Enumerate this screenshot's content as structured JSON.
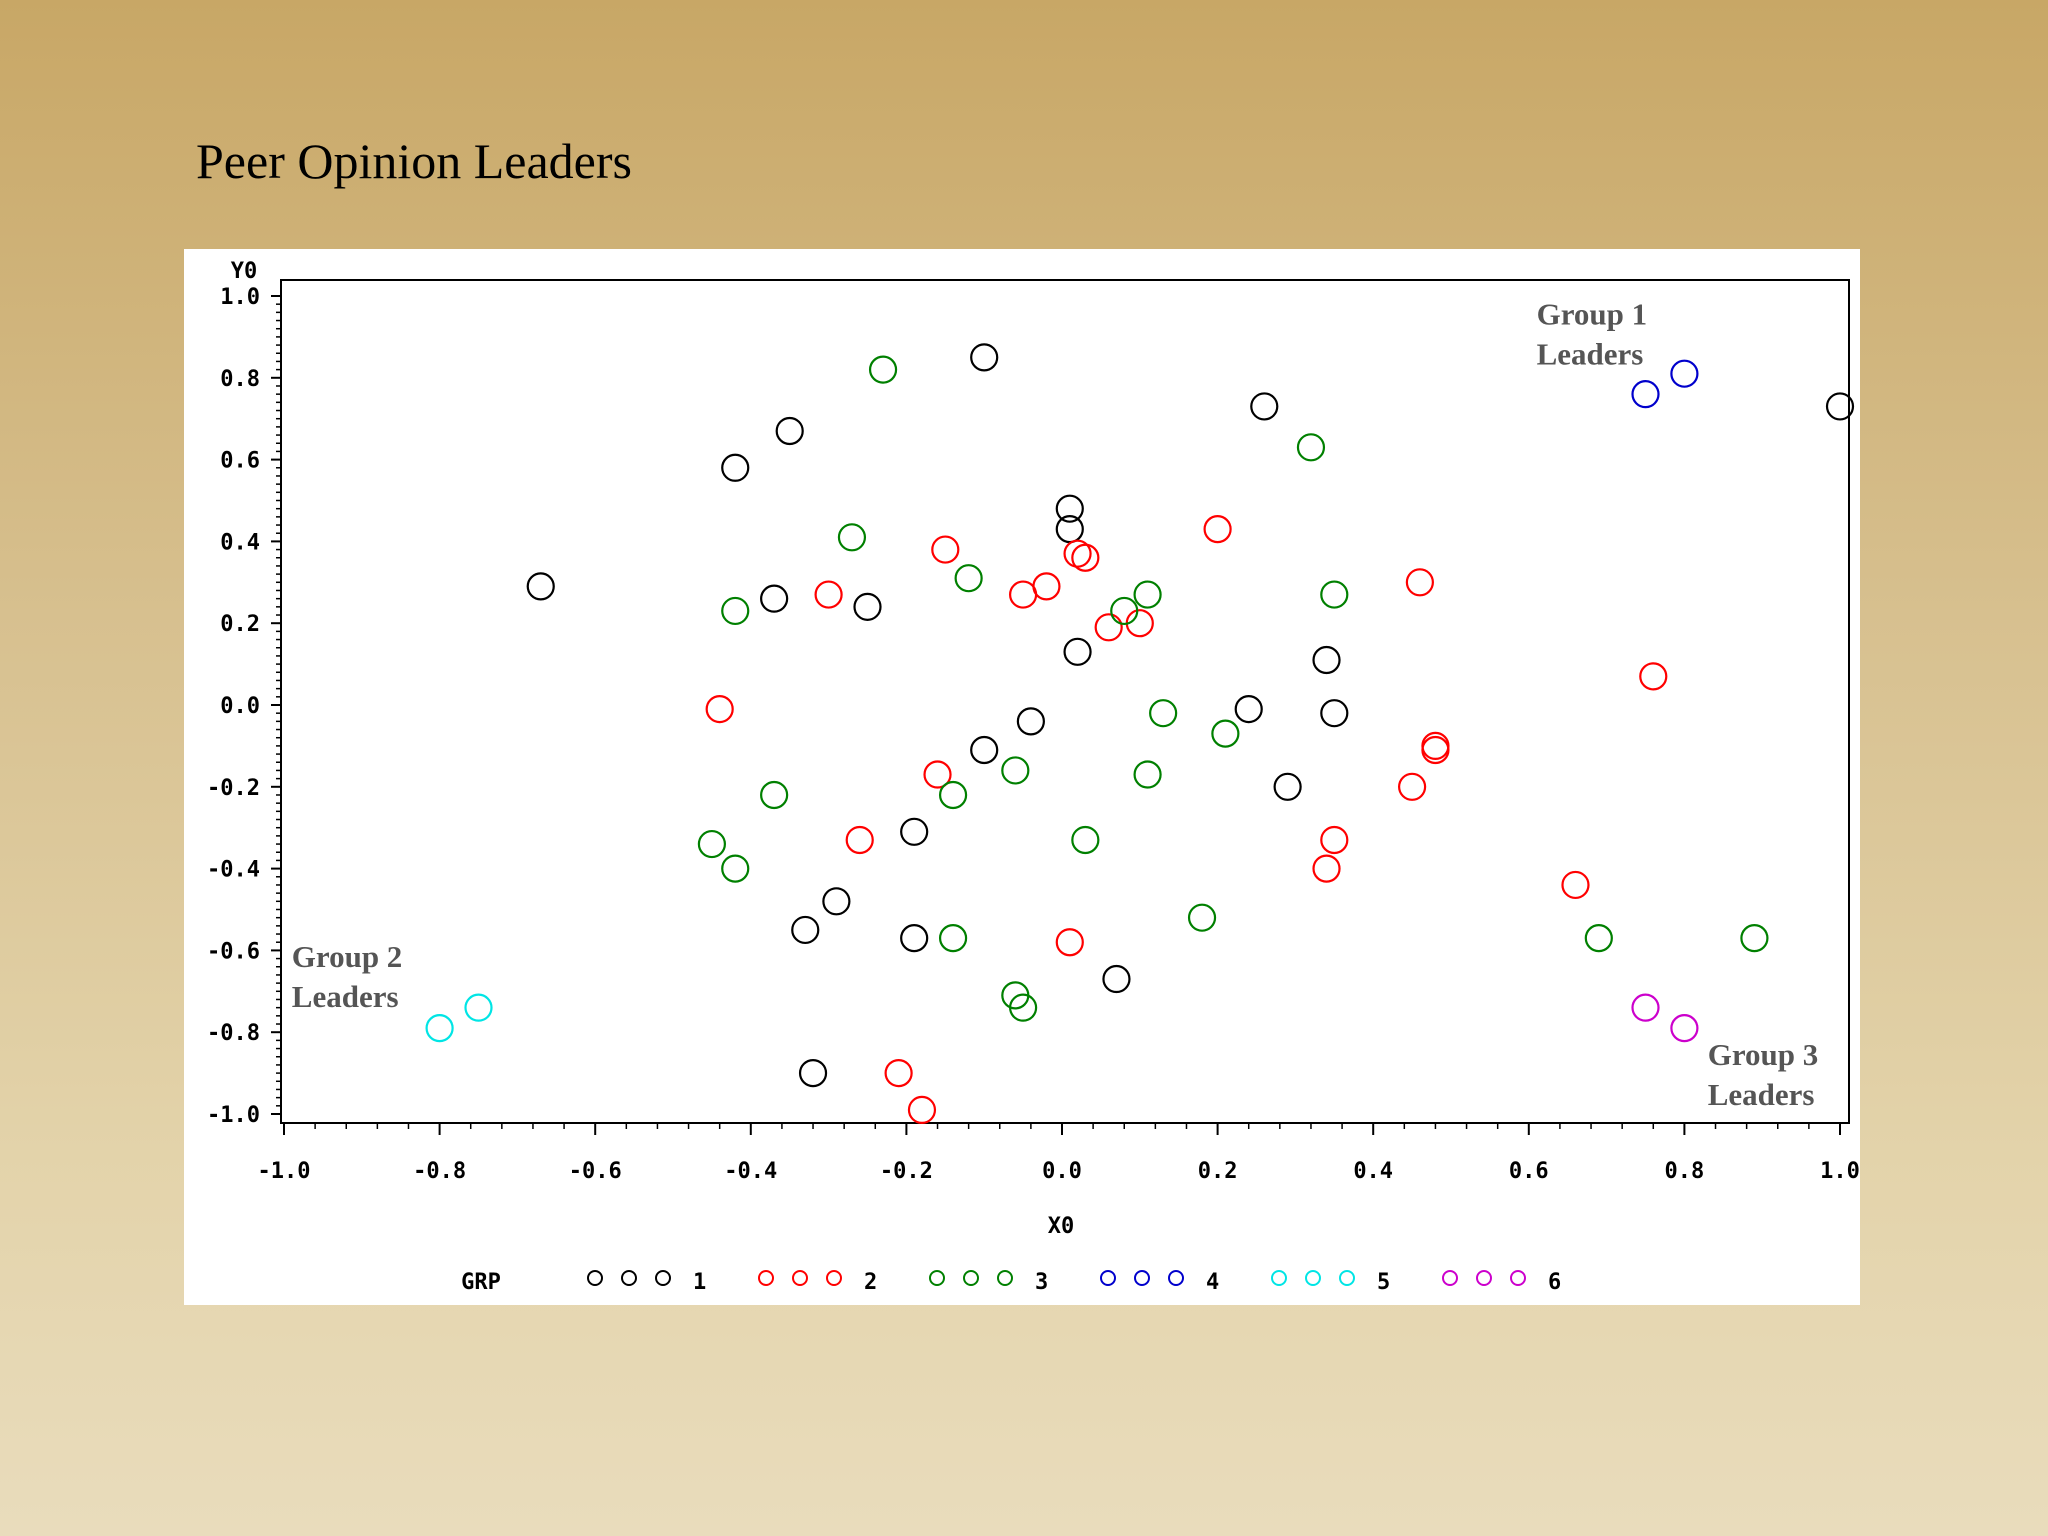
{
  "slide": {
    "title": "Peer Opinion Leaders"
  },
  "chart_data": {
    "type": "scatter",
    "xlabel": "X0",
    "ylabel": "Y0",
    "xlim": [
      -1.0,
      1.0
    ],
    "ylim": [
      -1.0,
      1.0
    ],
    "xticks": [
      "-1.0",
      "-0.8",
      "-0.6",
      "-0.4",
      "-0.2",
      "0.0",
      "0.2",
      "0.4",
      "0.6",
      "0.8",
      "1.0"
    ],
    "yticks": [
      "-1.0",
      "-0.8",
      "-0.6",
      "-0.4",
      "-0.2",
      "0.0",
      "0.2",
      "0.4",
      "0.6",
      "0.8",
      "1.0"
    ],
    "grid": false,
    "legend": {
      "title": "GRP",
      "placement": "bottom",
      "entries": [
        {
          "name": "1",
          "color": "#000000"
        },
        {
          "name": "2",
          "color": "#ff0000"
        },
        {
          "name": "3",
          "color": "#008000"
        },
        {
          "name": "4",
          "color": "#0000cc"
        },
        {
          "name": "5",
          "color": "#00e5e5"
        },
        {
          "name": "6",
          "color": "#cc00cc"
        }
      ]
    },
    "annotations": [
      {
        "line1": "Group 1",
        "line2": "Leaders",
        "x": 0.61,
        "y": 0.93
      },
      {
        "line1": "Group 2",
        "line2": "Leaders",
        "x": -0.99,
        "y": -0.64
      },
      {
        "line1": "Group 3",
        "line2": "Leaders",
        "x": 0.83,
        "y": -0.88
      }
    ],
    "series": [
      {
        "name": "1",
        "color": "#000000",
        "points": [
          [
            -0.67,
            0.29
          ],
          [
            -0.42,
            0.58
          ],
          [
            -0.35,
            0.67
          ],
          [
            -0.37,
            0.26
          ],
          [
            -0.25,
            0.24
          ],
          [
            -0.1,
            0.85
          ],
          [
            0.01,
            0.48
          ],
          [
            0.01,
            0.43
          ],
          [
            0.02,
            0.13
          ],
          [
            0.26,
            0.73
          ],
          [
            1.0,
            0.73
          ],
          [
            0.34,
            0.11
          ],
          [
            0.24,
            -0.01
          ],
          [
            0.35,
            -0.02
          ],
          [
            -0.04,
            -0.04
          ],
          [
            -0.1,
            -0.11
          ],
          [
            0.29,
            -0.2
          ],
          [
            -0.19,
            -0.31
          ],
          [
            -0.29,
            -0.48
          ],
          [
            -0.33,
            -0.55
          ],
          [
            -0.19,
            -0.57
          ],
          [
            0.07,
            -0.67
          ],
          [
            -0.32,
            -0.9
          ]
        ]
      },
      {
        "name": "2",
        "color": "#ff0000",
        "points": [
          [
            -0.15,
            0.38
          ],
          [
            0.2,
            0.43
          ],
          [
            0.02,
            0.37
          ],
          [
            0.03,
            0.36
          ],
          [
            -0.3,
            0.27
          ],
          [
            -0.05,
            0.27
          ],
          [
            -0.02,
            0.29
          ],
          [
            0.46,
            0.3
          ],
          [
            0.06,
            0.19
          ],
          [
            0.1,
            0.2
          ],
          [
            0.76,
            0.07
          ],
          [
            -0.44,
            -0.01
          ],
          [
            0.48,
            -0.1
          ],
          [
            0.48,
            -0.11
          ],
          [
            -0.16,
            -0.17
          ],
          [
            0.45,
            -0.2
          ],
          [
            -0.26,
            -0.33
          ],
          [
            0.35,
            -0.33
          ],
          [
            0.34,
            -0.4
          ],
          [
            0.66,
            -0.44
          ],
          [
            0.01,
            -0.58
          ],
          [
            -0.21,
            -0.9
          ],
          [
            -0.18,
            -0.99
          ]
        ]
      },
      {
        "name": "3",
        "color": "#008000",
        "points": [
          [
            -0.23,
            0.82
          ],
          [
            0.32,
            0.63
          ],
          [
            -0.27,
            0.41
          ],
          [
            -0.12,
            0.31
          ],
          [
            -0.42,
            0.23
          ],
          [
            0.08,
            0.23
          ],
          [
            0.11,
            0.27
          ],
          [
            0.35,
            0.27
          ],
          [
            0.13,
            -0.02
          ],
          [
            0.21,
            -0.07
          ],
          [
            -0.06,
            -0.16
          ],
          [
            0.11,
            -0.17
          ],
          [
            -0.37,
            -0.22
          ],
          [
            -0.14,
            -0.22
          ],
          [
            -0.45,
            -0.34
          ],
          [
            0.03,
            -0.33
          ],
          [
            -0.42,
            -0.4
          ],
          [
            0.18,
            -0.52
          ],
          [
            -0.14,
            -0.57
          ],
          [
            0.69,
            -0.57
          ],
          [
            0.89,
            -0.57
          ],
          [
            -0.06,
            -0.71
          ],
          [
            -0.05,
            -0.74
          ]
        ]
      },
      {
        "name": "4",
        "color": "#0000cc",
        "points": [
          [
            0.75,
            0.76
          ],
          [
            0.8,
            0.81
          ]
        ]
      },
      {
        "name": "5",
        "color": "#00e5e5",
        "points": [
          [
            -0.75,
            -0.74
          ],
          [
            -0.8,
            -0.79
          ]
        ]
      },
      {
        "name": "6",
        "color": "#cc00cc",
        "points": [
          [
            0.75,
            -0.74
          ],
          [
            0.8,
            -0.79
          ]
        ]
      }
    ]
  }
}
